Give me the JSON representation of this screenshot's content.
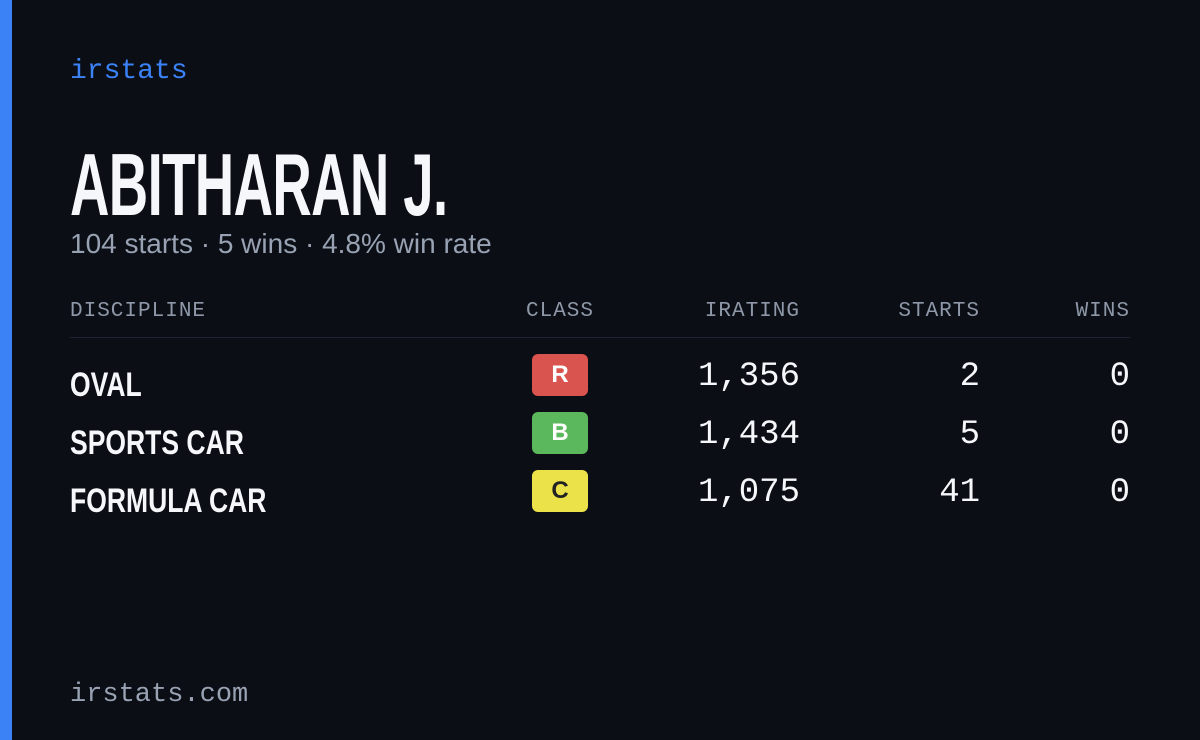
{
  "brand": "irstats",
  "name": "ABITHARAN J.",
  "summary": "104 starts · 5 wins · 4.8% win rate",
  "table": {
    "headers": [
      "DISCIPLINE",
      "CLASS",
      "IRATING",
      "STARTS",
      "WINS"
    ],
    "rows": [
      {
        "discipline": "OVAL",
        "class": "R",
        "class_color": "#d9534f",
        "irating": "1,356",
        "starts": "2",
        "wins": "0"
      },
      {
        "discipline": "SPORTS CAR",
        "class": "B",
        "class_color": "#5cb85c",
        "irating": "1,434",
        "starts": "5",
        "wins": "0"
      },
      {
        "discipline": "FORMULA CAR",
        "class": "C",
        "class_color": "#ebe24a",
        "irating": "1,075",
        "starts": "41",
        "wins": "0"
      }
    ]
  },
  "footer": "irstats.com"
}
